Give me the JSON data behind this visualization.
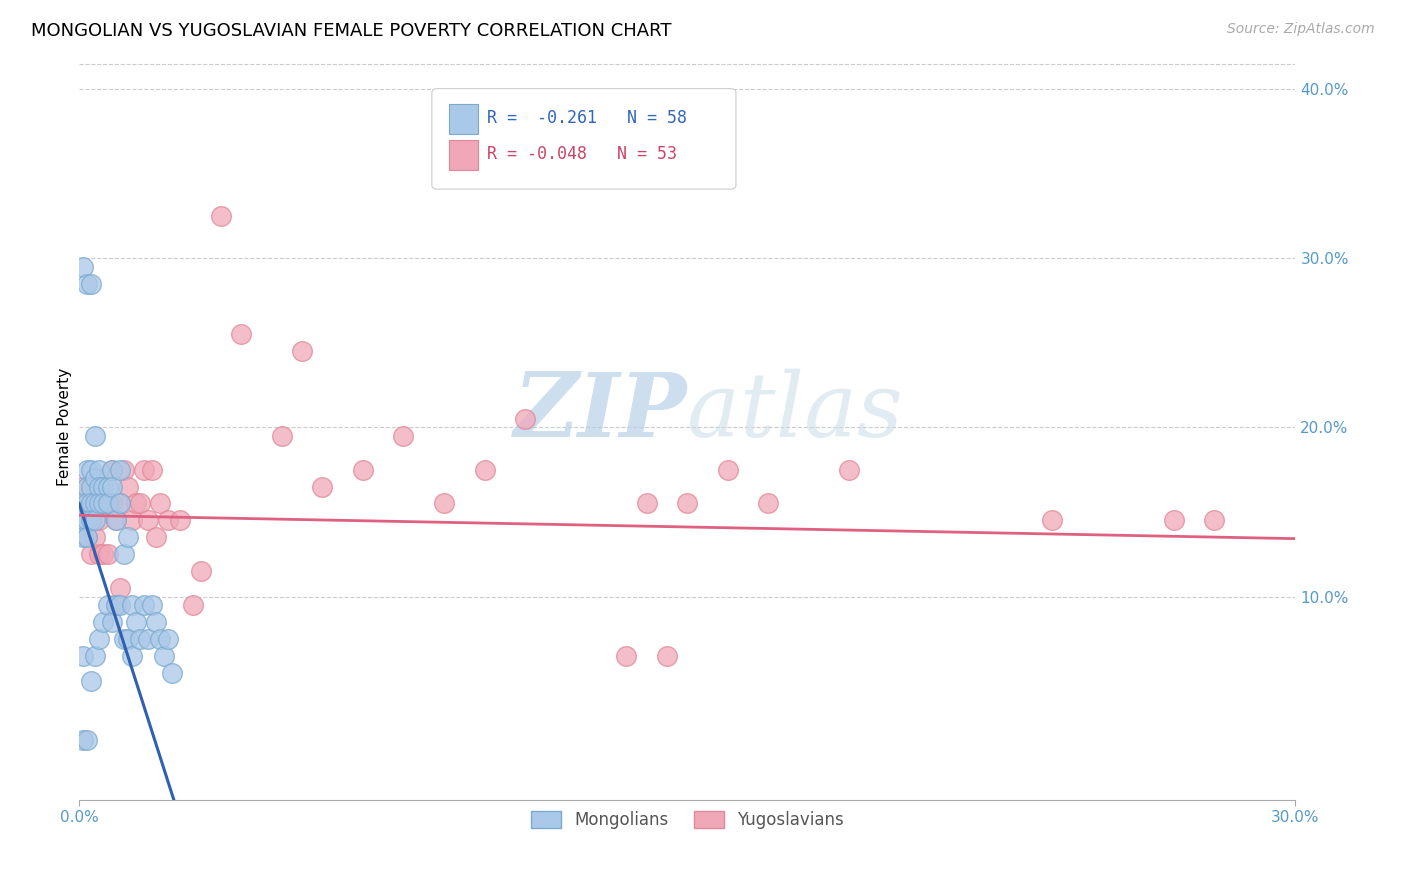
{
  "title": "MONGOLIAN VS YUGOSLAVIAN FEMALE POVERTY CORRELATION CHART",
  "source": "Source: ZipAtlas.com",
  "ylabel": "Female Poverty",
  "xlim": [
    0.0,
    0.3
  ],
  "ylim": [
    -0.02,
    0.42
  ],
  "plot_ylim": [
    0.0,
    0.42
  ],
  "yticks_right": [
    0.1,
    0.2,
    0.3,
    0.4
  ],
  "ytick_labels_right": [
    "10.0%",
    "20.0%",
    "30.0%",
    "40.0%"
  ],
  "grid_color": "#cccccc",
  "background_color": "#ffffff",
  "mongolian_color": "#aac8e8",
  "yugoslavian_color": "#f0a8b8",
  "mongolian_edge": "#7aaad0",
  "yugoslavian_edge": "#e08898",
  "mongolian_line_color": "#3060b0",
  "yugoslavian_line_color": "#e06080",
  "watermark_zip": "ZIP",
  "watermark_atlas": "atlas",
  "watermark_color": "#c8dff0",
  "title_fontsize": 13,
  "source_fontsize": 10,
  "legend_r_mongolian": "R =  -0.261",
  "legend_n_mongolian": "N = 58",
  "legend_r_yugoslavian": "R = -0.048",
  "legend_n_yugoslavian": "N = 53",
  "mongolian_R": -0.261,
  "yugoslavian_R": -0.048,
  "mon_x": [
    0.001,
    0.001,
    0.001,
    0.001,
    0.002,
    0.002,
    0.002,
    0.002,
    0.002,
    0.003,
    0.003,
    0.003,
    0.003,
    0.003,
    0.004,
    0.004,
    0.004,
    0.004,
    0.005,
    0.005,
    0.005,
    0.005,
    0.006,
    0.006,
    0.006,
    0.007,
    0.007,
    0.007,
    0.008,
    0.008,
    0.008,
    0.009,
    0.009,
    0.01,
    0.01,
    0.01,
    0.011,
    0.011,
    0.012,
    0.012,
    0.013,
    0.013,
    0.014,
    0.015,
    0.016,
    0.017,
    0.018,
    0.019,
    0.02,
    0.021,
    0.022,
    0.023,
    0.001,
    0.002,
    0.003,
    0.004,
    0.001,
    0.002
  ],
  "mon_y": [
    0.155,
    0.145,
    0.135,
    0.065,
    0.175,
    0.165,
    0.155,
    0.145,
    0.135,
    0.175,
    0.165,
    0.155,
    0.145,
    0.05,
    0.17,
    0.155,
    0.145,
    0.065,
    0.175,
    0.165,
    0.155,
    0.075,
    0.165,
    0.155,
    0.085,
    0.165,
    0.155,
    0.095,
    0.175,
    0.165,
    0.085,
    0.145,
    0.095,
    0.175,
    0.155,
    0.095,
    0.125,
    0.075,
    0.135,
    0.075,
    0.095,
    0.065,
    0.085,
    0.075,
    0.095,
    0.075,
    0.095,
    0.085,
    0.075,
    0.065,
    0.075,
    0.055,
    0.295,
    0.285,
    0.285,
    0.195,
    0.015,
    0.015
  ],
  "yug_x": [
    0.001,
    0.002,
    0.002,
    0.003,
    0.003,
    0.004,
    0.004,
    0.005,
    0.005,
    0.006,
    0.006,
    0.007,
    0.007,
    0.008,
    0.008,
    0.009,
    0.009,
    0.01,
    0.01,
    0.011,
    0.012,
    0.013,
    0.014,
    0.015,
    0.016,
    0.017,
    0.018,
    0.019,
    0.02,
    0.022,
    0.025,
    0.028,
    0.03,
    0.035,
    0.04,
    0.05,
    0.055,
    0.06,
    0.07,
    0.08,
    0.09,
    0.1,
    0.11,
    0.14,
    0.15,
    0.16,
    0.17,
    0.19,
    0.24,
    0.27,
    0.135,
    0.145,
    0.28
  ],
  "yug_y": [
    0.165,
    0.155,
    0.135,
    0.145,
    0.125,
    0.155,
    0.135,
    0.145,
    0.125,
    0.155,
    0.125,
    0.155,
    0.125,
    0.155,
    0.175,
    0.145,
    0.095,
    0.155,
    0.105,
    0.175,
    0.165,
    0.145,
    0.155,
    0.155,
    0.175,
    0.145,
    0.175,
    0.135,
    0.155,
    0.145,
    0.145,
    0.095,
    0.115,
    0.325,
    0.255,
    0.195,
    0.245,
    0.165,
    0.175,
    0.195,
    0.155,
    0.175,
    0.205,
    0.155,
    0.155,
    0.175,
    0.155,
    0.175,
    0.145,
    0.145,
    0.065,
    0.065,
    0.145
  ]
}
